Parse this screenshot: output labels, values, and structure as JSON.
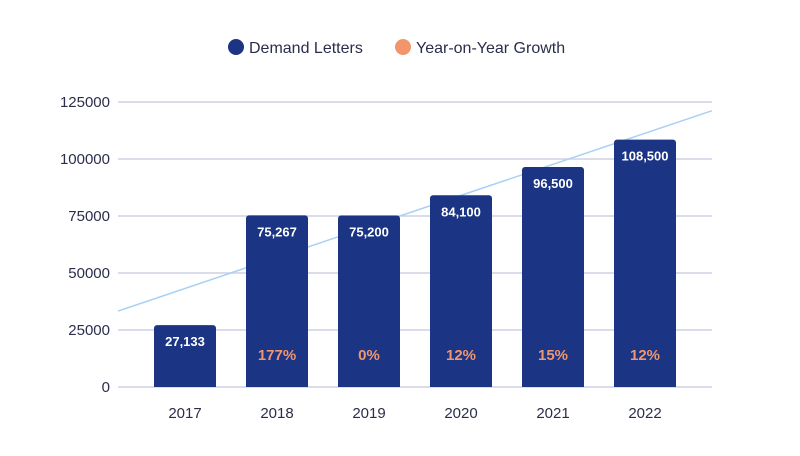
{
  "chart_data": {
    "type": "bar",
    "title": "",
    "xlabel": "",
    "ylabel": "",
    "categories": [
      "2017",
      "2018",
      "2019",
      "2020",
      "2021",
      "2022"
    ],
    "series": [
      {
        "name": "Demand Letters",
        "values": [
          27133,
          75267,
          75200,
          84100,
          96500,
          108500
        ],
        "labels": [
          "27,133",
          "75,267",
          "75,200",
          "84,100",
          "96,500",
          "108,500"
        ],
        "color": "#1b3484"
      },
      {
        "name": "Year-on-Year Growth",
        "values": [
          null,
          177,
          0,
          12,
          15,
          12
        ],
        "labels": [
          "",
          "177%",
          "0%",
          "12%",
          "15%",
          "12%"
        ],
        "color": "#f2956a"
      }
    ],
    "trendline": {
      "start_value": 33300,
      "end_value": 121200,
      "color": "#a9d0f5"
    },
    "ylim": [
      0,
      125000
    ],
    "yticks": [
      0,
      25000,
      50000,
      75000,
      100000,
      125000
    ],
    "ytick_labels": [
      "0",
      "25000",
      "50000",
      "75000",
      "100000",
      "125000"
    ],
    "grid": true,
    "grid_color": "#cdd0e6",
    "legend": "top-center"
  }
}
